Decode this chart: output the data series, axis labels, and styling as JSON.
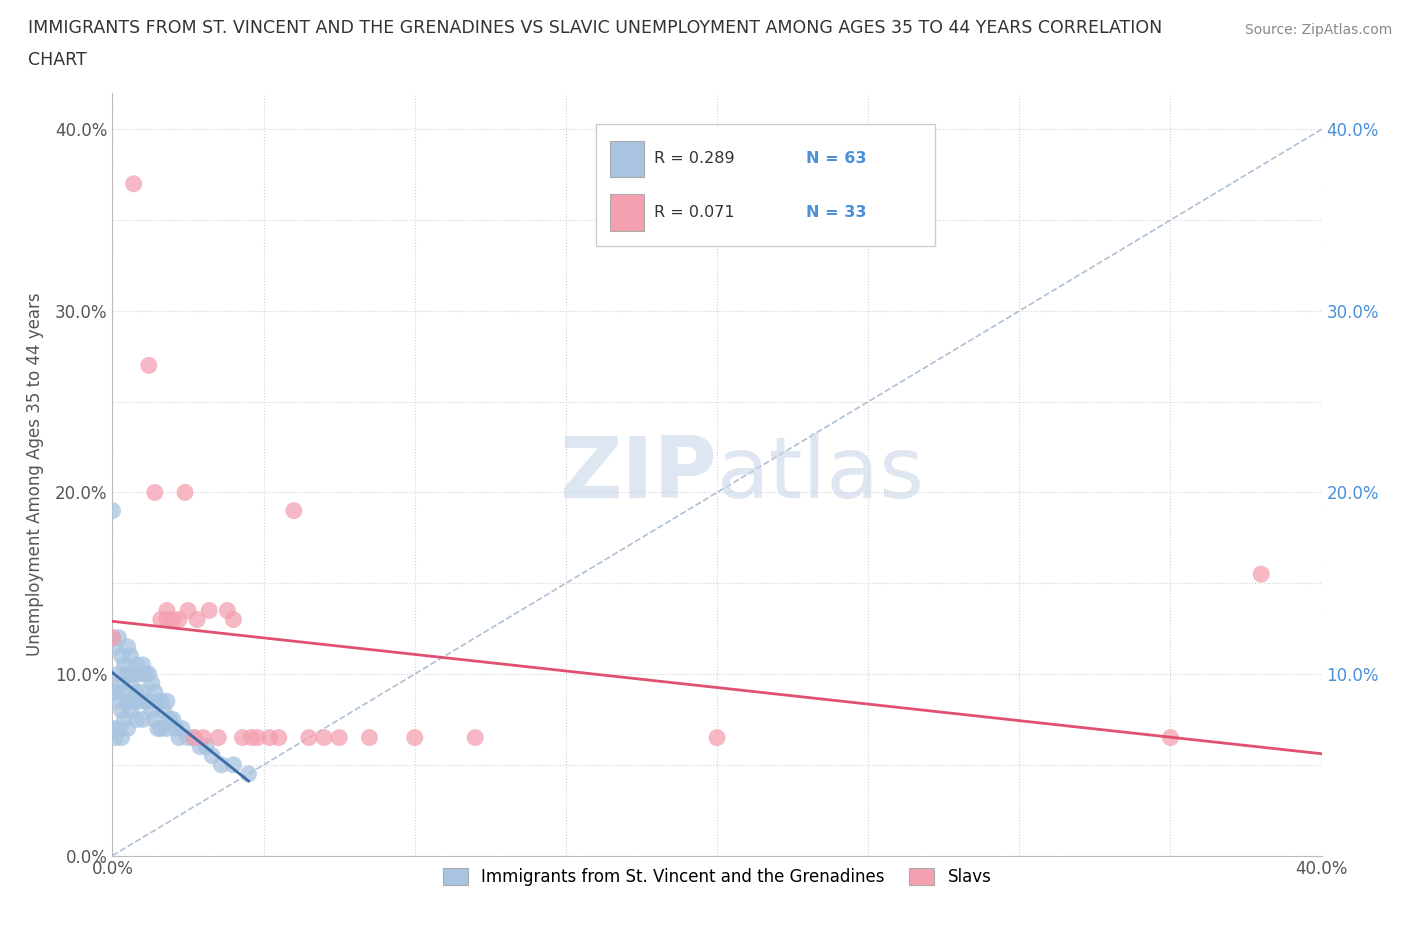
{
  "title_line1": "IMMIGRANTS FROM ST. VINCENT AND THE GRENADINES VS SLAVIC UNEMPLOYMENT AMONG AGES 35 TO 44 YEARS CORRELATION",
  "title_line2": "CHART",
  "source": "Source: ZipAtlas.com",
  "ylabel": "Unemployment Among Ages 35 to 44 years",
  "xlim": [
    0.0,
    0.4
  ],
  "ylim": [
    0.0,
    0.42
  ],
  "xticks": [
    0.0,
    0.05,
    0.1,
    0.15,
    0.2,
    0.25,
    0.3,
    0.35,
    0.4
  ],
  "yticks": [
    0.0,
    0.05,
    0.1,
    0.15,
    0.2,
    0.25,
    0.3,
    0.35,
    0.4
  ],
  "xtick_labels": [
    "0.0%",
    "",
    "",
    "",
    "",
    "",
    "",
    "",
    "40.0%"
  ],
  "ytick_labels": [
    "0.0%",
    "",
    "10.0%",
    "",
    "20.0%",
    "",
    "30.0%",
    "",
    "40.0%"
  ],
  "blue_R": 0.289,
  "blue_N": 63,
  "pink_R": 0.071,
  "pink_N": 33,
  "blue_color": "#a8c4e0",
  "pink_color": "#f4a0b0",
  "blue_line_color": "#3a6ca8",
  "pink_line_color": "#e05070",
  "diag_line_color": "#9ab0cc",
  "watermark_zip": "ZIP",
  "watermark_atlas": "atlas",
  "legend_label_blue": "Immigrants from St. Vincent and the Grenadines",
  "legend_label_pink": "Slavs",
  "blue_scatter_x": [
    0.0,
    0.0,
    0.0,
    0.0,
    0.001,
    0.001,
    0.001,
    0.002,
    0.002,
    0.002,
    0.002,
    0.003,
    0.003,
    0.003,
    0.003,
    0.004,
    0.004,
    0.004,
    0.005,
    0.005,
    0.005,
    0.005,
    0.006,
    0.006,
    0.006,
    0.007,
    0.007,
    0.008,
    0.008,
    0.008,
    0.009,
    0.009,
    0.01,
    0.01,
    0.01,
    0.011,
    0.011,
    0.012,
    0.012,
    0.013,
    0.013,
    0.014,
    0.014,
    0.015,
    0.015,
    0.016,
    0.016,
    0.017,
    0.018,
    0.018,
    0.019,
    0.02,
    0.021,
    0.022,
    0.023,
    0.025,
    0.027,
    0.029,
    0.031,
    0.033,
    0.036,
    0.04,
    0.045
  ],
  "blue_scatter_y": [
    0.19,
    0.12,
    0.09,
    0.07,
    0.115,
    0.09,
    0.065,
    0.12,
    0.1,
    0.085,
    0.07,
    0.11,
    0.095,
    0.08,
    0.065,
    0.105,
    0.09,
    0.075,
    0.115,
    0.1,
    0.085,
    0.07,
    0.11,
    0.095,
    0.08,
    0.1,
    0.085,
    0.105,
    0.09,
    0.075,
    0.1,
    0.085,
    0.105,
    0.09,
    0.075,
    0.1,
    0.085,
    0.1,
    0.085,
    0.095,
    0.08,
    0.09,
    0.075,
    0.085,
    0.07,
    0.085,
    0.07,
    0.08,
    0.085,
    0.07,
    0.075,
    0.075,
    0.07,
    0.065,
    0.07,
    0.065,
    0.065,
    0.06,
    0.06,
    0.055,
    0.05,
    0.05,
    0.045
  ],
  "pink_scatter_x": [
    0.0,
    0.007,
    0.012,
    0.014,
    0.016,
    0.018,
    0.018,
    0.02,
    0.022,
    0.024,
    0.025,
    0.027,
    0.028,
    0.03,
    0.032,
    0.035,
    0.038,
    0.04,
    0.043,
    0.046,
    0.048,
    0.052,
    0.055,
    0.06,
    0.065,
    0.07,
    0.075,
    0.085,
    0.1,
    0.12,
    0.2,
    0.35,
    0.38
  ],
  "pink_scatter_y": [
    0.12,
    0.37,
    0.27,
    0.2,
    0.13,
    0.135,
    0.13,
    0.13,
    0.13,
    0.2,
    0.135,
    0.065,
    0.13,
    0.065,
    0.135,
    0.065,
    0.135,
    0.13,
    0.065,
    0.065,
    0.065,
    0.065,
    0.065,
    0.19,
    0.065,
    0.065,
    0.065,
    0.065,
    0.065,
    0.065,
    0.065,
    0.065,
    0.155
  ]
}
